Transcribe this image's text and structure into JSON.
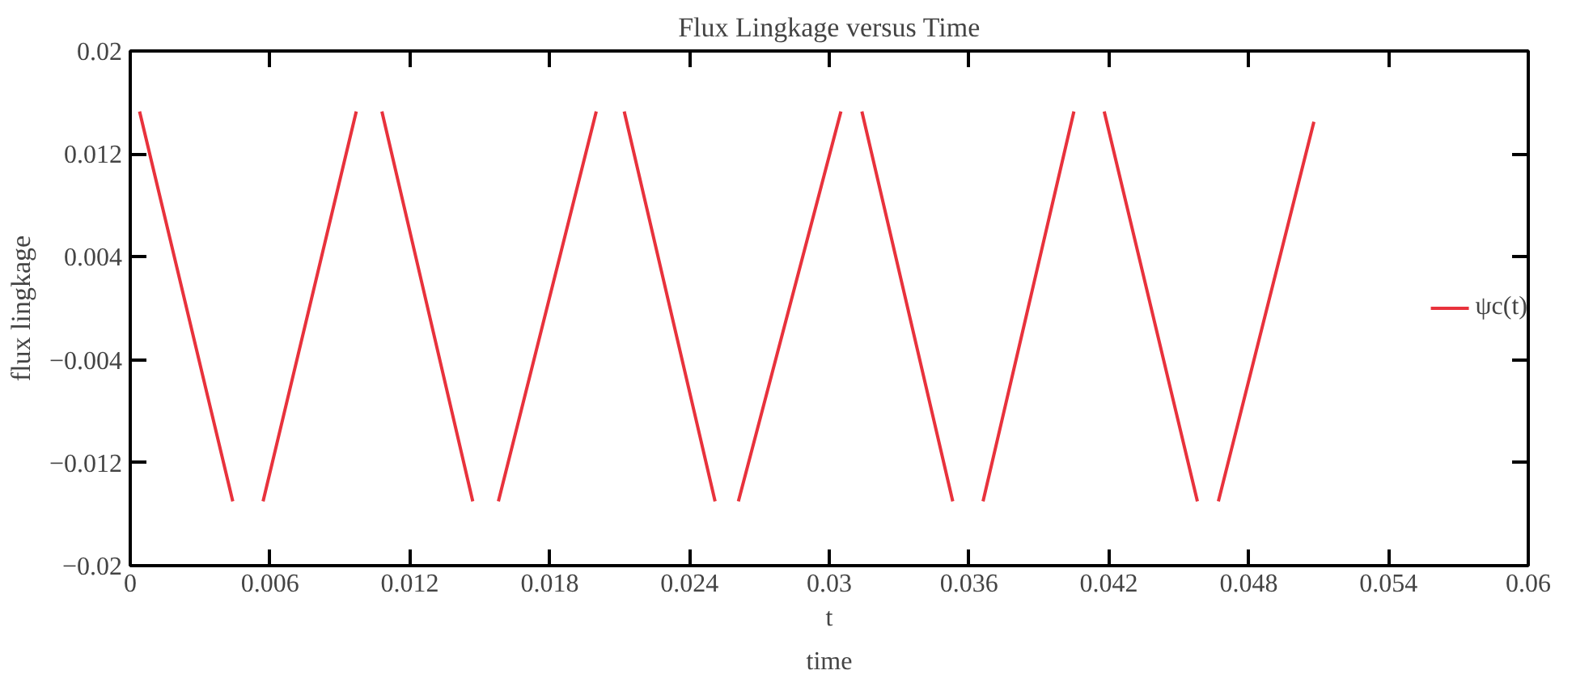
{
  "chart_data": {
    "type": "line",
    "title": "Flux Lingkage versus Time",
    "xlabel": "t",
    "ylabel": "flux lingkage",
    "annotations": [
      "time"
    ],
    "x": [
      0.0004,
      0.0044,
      0.00505,
      0.0057,
      0.0097,
      0.01025,
      0.0108,
      0.0147,
      0.01525,
      0.0158,
      0.02,
      0.0206,
      0.0212,
      0.0251,
      0.0256,
      0.0261,
      0.0305,
      0.03095,
      0.0314,
      0.0353,
      0.03595,
      0.0366,
      0.0405,
      0.04115,
      0.0418,
      0.0458,
      0.04625,
      0.0467,
      0.0508
    ],
    "series": [
      {
        "name": "ψc(t)",
        "color": "#e8323c",
        "values": [
          0.0153,
          -0.015,
          null,
          -0.015,
          0.0153,
          null,
          0.0153,
          -0.015,
          null,
          -0.015,
          0.0153,
          null,
          0.0153,
          -0.015,
          null,
          -0.015,
          0.0153,
          null,
          0.0153,
          -0.015,
          null,
          -0.015,
          0.0153,
          null,
          0.0153,
          -0.015,
          null,
          -0.015,
          0.0145
        ]
      }
    ],
    "xlim": [
      0,
      0.06
    ],
    "ylim": [
      -0.02,
      0.02
    ],
    "xticks": [
      0,
      0.006,
      0.012,
      0.018,
      0.024,
      0.03,
      0.036,
      0.042,
      0.048,
      0.054,
      0.06
    ],
    "yticks": [
      {
        "value": -0.02,
        "label": "−0.02"
      },
      {
        "value": -0.012,
        "label": "−0.012"
      },
      {
        "value": -0.004,
        "label": "−0.004"
      },
      0.004,
      0.012,
      0.02
    ],
    "grid": false,
    "legend": "right",
    "line_style": "solid"
  }
}
